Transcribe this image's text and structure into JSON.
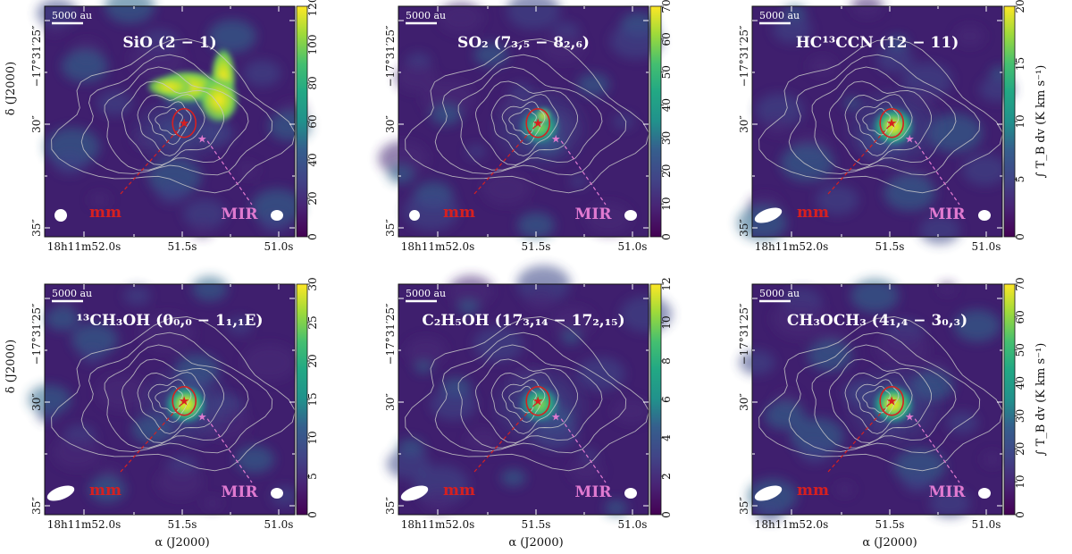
{
  "figure": {
    "x_axis_title": "α (J2000)",
    "y_axis_title": "δ (J2000)",
    "colorbar_title": "∫ T_B dv (K km s⁻¹)",
    "x_tick_labels": [
      "18h11m52.0s",
      "51.5s",
      "51.0s"
    ],
    "y_tick_labels": [
      "−17°31′25″",
      "30″",
      "35″"
    ],
    "scalebar_label": "5000 au",
    "mm_label": "mm",
    "mir_label": "MIR",
    "colors": {
      "mm": "#d62020",
      "mir": "#e07ad0",
      "contour": "#c9c9c9"
    },
    "colormap": "viridis"
  },
  "chart_data": [
    {
      "type": "heatmap",
      "title": "SiO (2 − 1)",
      "colorbar_range": [
        0,
        120
      ],
      "colorbar_ticks": [
        0,
        20,
        40,
        60,
        80,
        100,
        120
      ],
      "emission": "extended-north"
    },
    {
      "type": "heatmap",
      "title": "SO₂ (7₃,₅ − 8₂,₆)",
      "colorbar_range": [
        0,
        70
      ],
      "colorbar_ticks": [
        0,
        10,
        20,
        30,
        40,
        50,
        60,
        70
      ],
      "emission": "compact"
    },
    {
      "type": "heatmap",
      "title": "HC¹³CCN (12 − 11)",
      "colorbar_range": [
        0,
        20
      ],
      "colorbar_ticks": [
        0,
        5,
        10,
        15,
        20
      ],
      "emission": "compact"
    },
    {
      "type": "heatmap",
      "title": "¹³CH₃OH (0₀,₀ − 1₁,₁E)",
      "colorbar_range": [
        0,
        30
      ],
      "colorbar_ticks": [
        0,
        5,
        10,
        15,
        20,
        25,
        30
      ],
      "emission": "compact"
    },
    {
      "type": "heatmap",
      "title": "C₂H₅OH (17₃,₁₄ − 17₂,₁₅)",
      "colorbar_range": [
        0,
        12
      ],
      "colorbar_ticks": [
        0,
        2,
        4,
        6,
        8,
        10,
        12
      ],
      "emission": "compact"
    },
    {
      "type": "heatmap",
      "title": "CH₃OCH₃ (4₁,₄ − 3₀,₃)",
      "colorbar_range": [
        0,
        70
      ],
      "colorbar_ticks": [
        0,
        10,
        20,
        30,
        40,
        50,
        60,
        70
      ],
      "emission": "compact"
    }
  ]
}
